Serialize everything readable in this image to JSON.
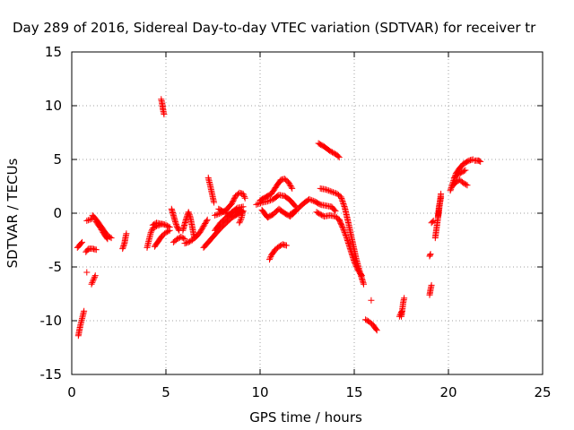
{
  "chart_data": {
    "type": "scatter",
    "title": "Day 289 of 2016, Sidereal Day-to-day VTEC variation (SDTVAR) for receiver tr",
    "xlabel": "GPS time / hours",
    "ylabel": "SDTVAR / TECUs",
    "xlim": [
      0,
      25
    ],
    "ylim": [
      -15,
      15
    ],
    "xticks": [
      "0",
      "5",
      "10",
      "15",
      "20",
      "25"
    ],
    "yticks": [
      "-15",
      "-10",
      "-5",
      "0",
      "5",
      "10",
      "15"
    ],
    "grid": true,
    "marker": "plus",
    "color": "#ff0000",
    "tracks": [
      [
        [
          0.3,
          -3.2
        ],
        [
          0.45,
          -2.9
        ],
        [
          0.55,
          -2.7
        ]
      ],
      [
        [
          0.35,
          -11.4
        ],
        [
          0.45,
          -10.5
        ],
        [
          0.55,
          -9.8
        ],
        [
          0.65,
          -9.1
        ]
      ],
      [
        [
          0.75,
          -3.6
        ],
        [
          0.9,
          -3.3
        ],
        [
          1.1,
          -3.3
        ],
        [
          1.3,
          -3.4
        ]
      ],
      [
        [
          0.8,
          -0.7
        ],
        [
          0.95,
          -0.6
        ],
        [
          1.1,
          -0.5
        ]
      ],
      [
        [
          0.8,
          -5.5
        ]
      ],
      [
        [
          1.05,
          -6.6
        ],
        [
          1.15,
          -6.2
        ],
        [
          1.25,
          -5.8
        ]
      ],
      [
        [
          1.1,
          -0.2
        ],
        [
          1.3,
          -0.6
        ],
        [
          1.5,
          -1.1
        ],
        [
          1.7,
          -1.6
        ],
        [
          1.9,
          -2.1
        ],
        [
          2.1,
          -2.3
        ]
      ],
      [
        [
          1.3,
          -0.8
        ],
        [
          1.5,
          -1.3
        ],
        [
          1.7,
          -1.9
        ],
        [
          1.9,
          -2.4
        ]
      ],
      [
        [
          2.7,
          -3.3
        ],
        [
          2.8,
          -2.8
        ],
        [
          2.85,
          -2.3
        ],
        [
          2.9,
          -1.9
        ]
      ],
      [
        [
          4.0,
          -3.2
        ],
        [
          4.1,
          -2.5
        ],
        [
          4.2,
          -1.8
        ],
        [
          4.3,
          -1.4
        ],
        [
          4.5,
          -1.2
        ],
        [
          4.8,
          -1.0
        ],
        [
          5.0,
          -1.1
        ],
        [
          5.2,
          -1.3
        ]
      ],
      [
        [
          4.3,
          -1.1
        ],
        [
          4.5,
          -0.9
        ],
        [
          4.8,
          -1.0
        ]
      ],
      [
        [
          4.75,
          10.6
        ],
        [
          4.8,
          10.2
        ],
        [
          4.85,
          9.6
        ],
        [
          4.9,
          9.2
        ]
      ],
      [
        [
          4.4,
          -3.1
        ],
        [
          4.6,
          -2.6
        ],
        [
          4.8,
          -2.1
        ],
        [
          5.0,
          -1.8
        ],
        [
          5.2,
          -1.6
        ]
      ],
      [
        [
          5.3,
          0.4
        ],
        [
          5.4,
          -0.2
        ],
        [
          5.5,
          -0.8
        ],
        [
          5.6,
          -1.3
        ],
        [
          5.7,
          -1.6
        ]
      ],
      [
        [
          5.4,
          -2.7
        ],
        [
          5.6,
          -2.4
        ],
        [
          5.8,
          -2.2
        ],
        [
          6.0,
          -2.4
        ]
      ],
      [
        [
          5.9,
          -1.6
        ],
        [
          6.0,
          -1.0
        ],
        [
          6.1,
          -0.4
        ],
        [
          6.2,
          0.1
        ],
        [
          6.3,
          -0.4
        ],
        [
          6.4,
          -1.3
        ],
        [
          6.5,
          -2.2
        ]
      ],
      [
        [
          6.0,
          -2.8
        ],
        [
          6.2,
          -2.7
        ],
        [
          6.4,
          -2.5
        ],
        [
          6.6,
          -2.2
        ],
        [
          6.8,
          -1.8
        ],
        [
          7.0,
          -1.2
        ],
        [
          7.2,
          -0.6
        ]
      ],
      [
        [
          7.25,
          3.3
        ],
        [
          7.35,
          2.6
        ],
        [
          7.45,
          1.8
        ],
        [
          7.55,
          1.0
        ]
      ],
      [
        [
          7.0,
          -3.2
        ],
        [
          7.3,
          -2.6
        ],
        [
          7.6,
          -2.0
        ],
        [
          7.9,
          -1.4
        ],
        [
          8.2,
          -0.9
        ],
        [
          8.5,
          -0.4
        ],
        [
          8.8,
          -0.1
        ],
        [
          9.1,
          0.2
        ]
      ],
      [
        [
          7.6,
          -1.6
        ],
        [
          7.9,
          -0.9
        ],
        [
          8.2,
          -0.4
        ],
        [
          8.5,
          0.1
        ],
        [
          8.8,
          0.5
        ],
        [
          9.1,
          0.6
        ]
      ],
      [
        [
          7.6,
          -0.2
        ],
        [
          7.9,
          0.0
        ],
        [
          8.2,
          0.3
        ],
        [
          8.5,
          0.9
        ],
        [
          8.7,
          1.6
        ],
        [
          8.9,
          1.9
        ],
        [
          9.1,
          1.8
        ],
        [
          9.2,
          1.4
        ]
      ],
      [
        [
          8.9,
          -0.9
        ],
        [
          9.0,
          -0.5
        ],
        [
          9.1,
          0.2
        ]
      ],
      [
        [
          7.8,
          0.4
        ],
        [
          8.1,
          0.1
        ],
        [
          8.4,
          -0.1
        ],
        [
          8.7,
          0.1
        ],
        [
          9.0,
          0.3
        ]
      ],
      [
        [
          10.0,
          1.2
        ],
        [
          10.3,
          1.5
        ],
        [
          10.6,
          1.8
        ],
        [
          10.9,
          2.6
        ],
        [
          11.1,
          3.1
        ],
        [
          11.3,
          3.2
        ],
        [
          11.5,
          2.9
        ],
        [
          11.7,
          2.3
        ]
      ],
      [
        [
          9.8,
          0.8
        ],
        [
          10.1,
          1.0
        ],
        [
          10.4,
          1.1
        ],
        [
          10.7,
          1.3
        ],
        [
          11.0,
          1.7
        ],
        [
          11.3,
          1.6
        ],
        [
          11.6,
          1.2
        ],
        [
          11.9,
          0.6
        ]
      ],
      [
        [
          10.1,
          0.3
        ],
        [
          10.4,
          -0.4
        ],
        [
          10.7,
          -0.1
        ],
        [
          11.0,
          0.4
        ],
        [
          11.3,
          0.0
        ],
        [
          11.6,
          -0.3
        ],
        [
          11.9,
          0.2
        ]
      ],
      [
        [
          10.5,
          -4.3
        ],
        [
          10.6,
          -3.9
        ],
        [
          10.8,
          -3.4
        ],
        [
          11.0,
          -3.1
        ],
        [
          11.2,
          -2.9
        ],
        [
          11.4,
          -3.0
        ]
      ],
      [
        [
          11.6,
          -0.1
        ],
        [
          12.0,
          0.4
        ],
        [
          12.3,
          0.9
        ],
        [
          12.6,
          1.3
        ],
        [
          12.9,
          1.1
        ],
        [
          13.2,
          0.8
        ],
        [
          13.5,
          0.7
        ],
        [
          13.8,
          0.6
        ],
        [
          14.0,
          0.2
        ]
      ],
      [
        [
          13.1,
          6.5
        ],
        [
          13.4,
          6.2
        ],
        [
          13.7,
          5.8
        ],
        [
          13.9,
          5.6
        ],
        [
          14.1,
          5.4
        ],
        [
          14.2,
          5.2
        ]
      ],
      [
        [
          13.2,
          2.3
        ],
        [
          13.5,
          2.2
        ],
        [
          13.8,
          2.0
        ],
        [
          14.1,
          1.8
        ],
        [
          14.3,
          1.5
        ]
      ],
      [
        [
          13.0,
          0.1
        ],
        [
          13.4,
          -0.3
        ],
        [
          13.7,
          -0.2
        ],
        [
          14.0,
          -0.3
        ],
        [
          14.2,
          -0.6
        ]
      ],
      [
        [
          14.3,
          1.5
        ],
        [
          14.5,
          0.5
        ],
        [
          14.7,
          -1.0
        ],
        [
          14.9,
          -2.6
        ],
        [
          15.1,
          -4.2
        ],
        [
          15.3,
          -5.5
        ],
        [
          15.5,
          -6.6
        ]
      ],
      [
        [
          14.2,
          -0.6
        ],
        [
          14.4,
          -1.4
        ],
        [
          14.6,
          -2.3
        ],
        [
          14.8,
          -3.4
        ],
        [
          15.0,
          -4.5
        ],
        [
          15.2,
          -5.3
        ],
        [
          15.4,
          -5.8
        ]
      ],
      [
        [
          15.9,
          -8.1
        ]
      ],
      [
        [
          15.6,
          -9.9
        ],
        [
          15.8,
          -10.1
        ],
        [
          16.0,
          -10.4
        ],
        [
          16.2,
          -10.9
        ]
      ],
      [
        [
          17.5,
          -9.6
        ],
        [
          17.55,
          -9.0
        ],
        [
          17.6,
          -8.3
        ],
        [
          17.65,
          -7.9
        ]
      ],
      [
        [
          17.4,
          -9.6
        ],
        [
          17.5,
          -9.2
        ]
      ],
      [
        [
          19.0,
          -7.6
        ],
        [
          19.05,
          -7.1
        ],
        [
          19.1,
          -6.7
        ]
      ],
      [
        [
          19.0,
          -4.0
        ],
        [
          19.05,
          -3.8
        ]
      ],
      [
        [
          19.1,
          -0.9
        ],
        [
          19.2,
          -0.7
        ]
      ],
      [
        [
          19.3,
          -2.3
        ],
        [
          19.4,
          -1.0
        ],
        [
          19.5,
          0.3
        ],
        [
          19.55,
          1.0
        ],
        [
          19.6,
          1.8
        ]
      ],
      [
        [
          19.45,
          -0.3
        ],
        [
          19.5,
          0.6
        ],
        [
          19.6,
          1.5
        ]
      ],
      [
        [
          20.1,
          2.1
        ],
        [
          20.25,
          2.9
        ],
        [
          20.4,
          3.7
        ],
        [
          20.6,
          4.2
        ],
        [
          20.8,
          4.6
        ],
        [
          21.1,
          4.9
        ],
        [
          21.3,
          5.0
        ]
      ],
      [
        [
          20.2,
          2.5
        ],
        [
          20.4,
          2.9
        ],
        [
          20.6,
          3.1
        ],
        [
          20.8,
          2.8
        ],
        [
          21.0,
          2.6
        ]
      ],
      [
        [
          20.3,
          3.3
        ],
        [
          20.5,
          3.6
        ],
        [
          20.7,
          3.8
        ],
        [
          20.9,
          4.0
        ]
      ],
      [
        [
          21.4,
          4.9
        ],
        [
          21.6,
          4.9
        ],
        [
          21.7,
          4.8
        ]
      ]
    ]
  }
}
